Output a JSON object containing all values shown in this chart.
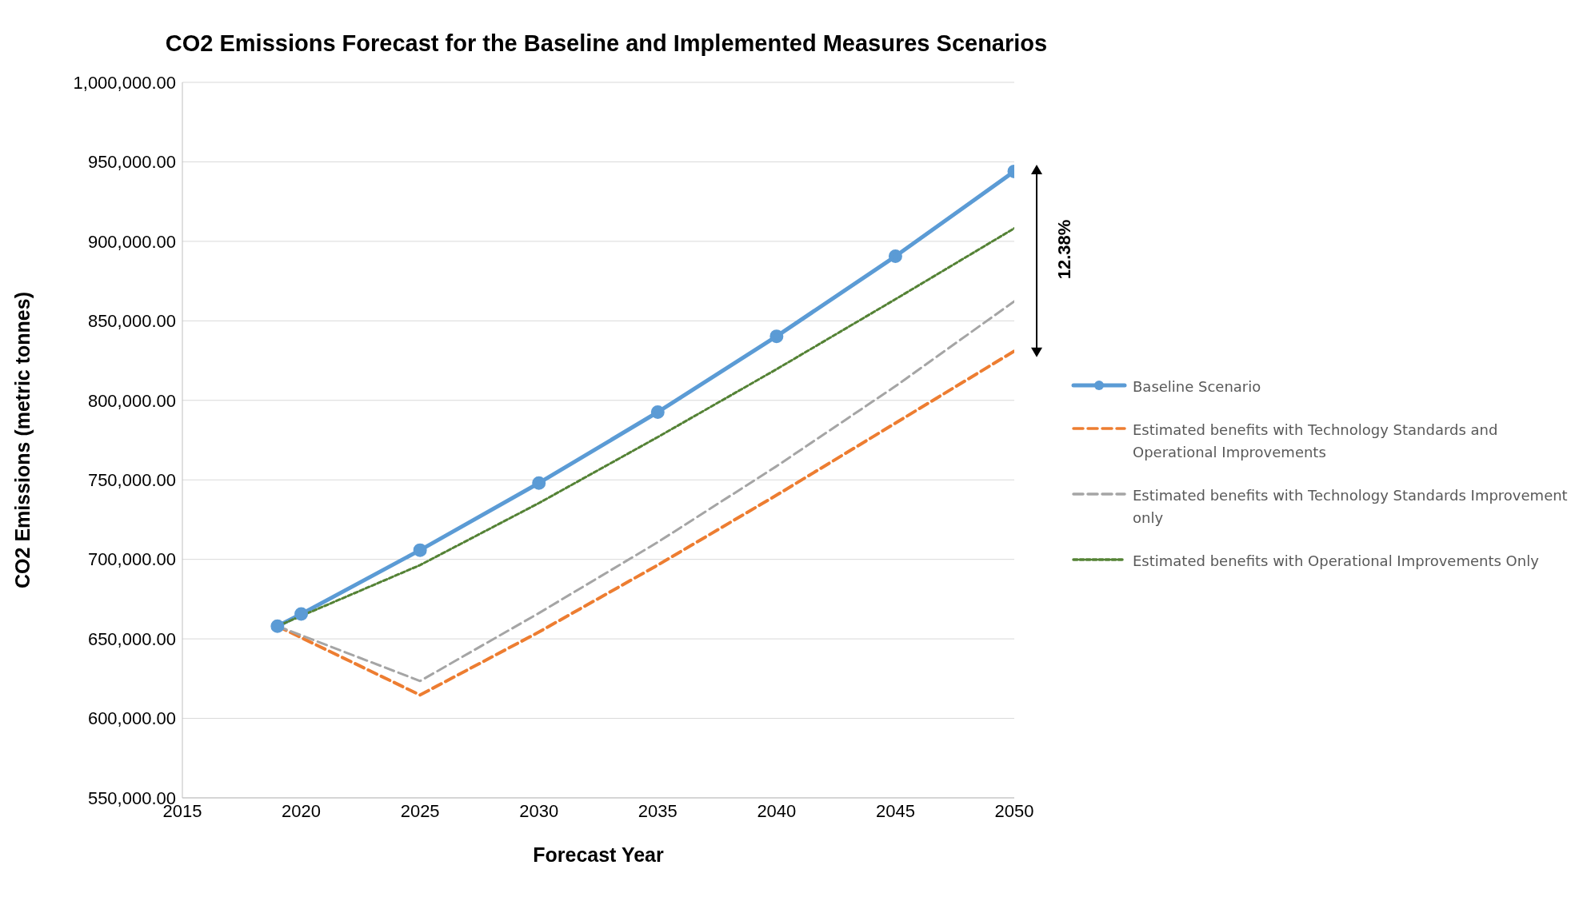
{
  "chart_data": {
    "type": "line",
    "title": "CO2 Emissions Forecast for the Baseline and Implemented Measures Scenarios",
    "xlabel": "Forecast Year",
    "ylabel": "CO2 Emissions (metric tonnes)",
    "x": [
      2019,
      2020,
      2025,
      2030,
      2035,
      2040,
      2045,
      2050
    ],
    "series": [
      {
        "name": "Baseline Scenario",
        "color": "#5b9bd5",
        "line_style": "solid",
        "marker": "circle",
        "values": [
          658000,
          665600,
          705800,
          748000,
          792600,
          840300,
          890600,
          944000
        ]
      },
      {
        "name": "Estimated benefits with Technology Standards and Operational Improvements",
        "color": "#ed7d31",
        "line_style": "dashed",
        "marker": "none",
        "x": [
          2019,
          2025,
          2030,
          2035,
          2040,
          2045,
          2050
        ],
        "values": [
          658000,
          614700,
          654300,
          696400,
          740400,
          785700,
          831000
        ]
      },
      {
        "name": "Estimated benefits with Technology Standards Improvement only",
        "color": "#a5a5a5",
        "line_style": "dashed",
        "marker": "none",
        "x": [
          2019,
          2025,
          2030,
          2035,
          2040,
          2045,
          2050
        ],
        "values": [
          658000,
          623500,
          666200,
          710800,
          758600,
          808900,
          862300
        ]
      },
      {
        "name": "Estimated benefits with Operational Improvements Only",
        "color": "#548235",
        "line_style": "dotted",
        "marker": "none",
        "x": [
          2019,
          2025,
          2030,
          2035,
          2040,
          2045,
          2050
        ],
        "values": [
          658000,
          696400,
          735400,
          776900,
          819600,
          863600,
          908200
        ]
      }
    ],
    "xlim": [
      2015,
      2050
    ],
    "xticks": [
      2015,
      2020,
      2025,
      2030,
      2035,
      2040,
      2045,
      2050
    ],
    "ylim": [
      550000,
      1000000
    ],
    "yticks": [
      {
        "value": 550000,
        "label": "550,000.00"
      },
      {
        "value": 600000,
        "label": "600,000.00"
      },
      {
        "value": 650000,
        "label": "650,000.00"
      },
      {
        "value": 700000,
        "label": "700,000.00"
      },
      {
        "value": 750000,
        "label": "750,000.00"
      },
      {
        "value": 800000,
        "label": "800,000.00"
      },
      {
        "value": 850000,
        "label": "850,000.00"
      },
      {
        "value": 900000,
        "label": "900,000.00"
      },
      {
        "value": 950000,
        "label": "950,000.00"
      },
      {
        "value": 1000000,
        "label": "1,000,000.00"
      }
    ],
    "grid": "y",
    "legend": "right",
    "annotations": [
      "12.38%"
    ]
  }
}
